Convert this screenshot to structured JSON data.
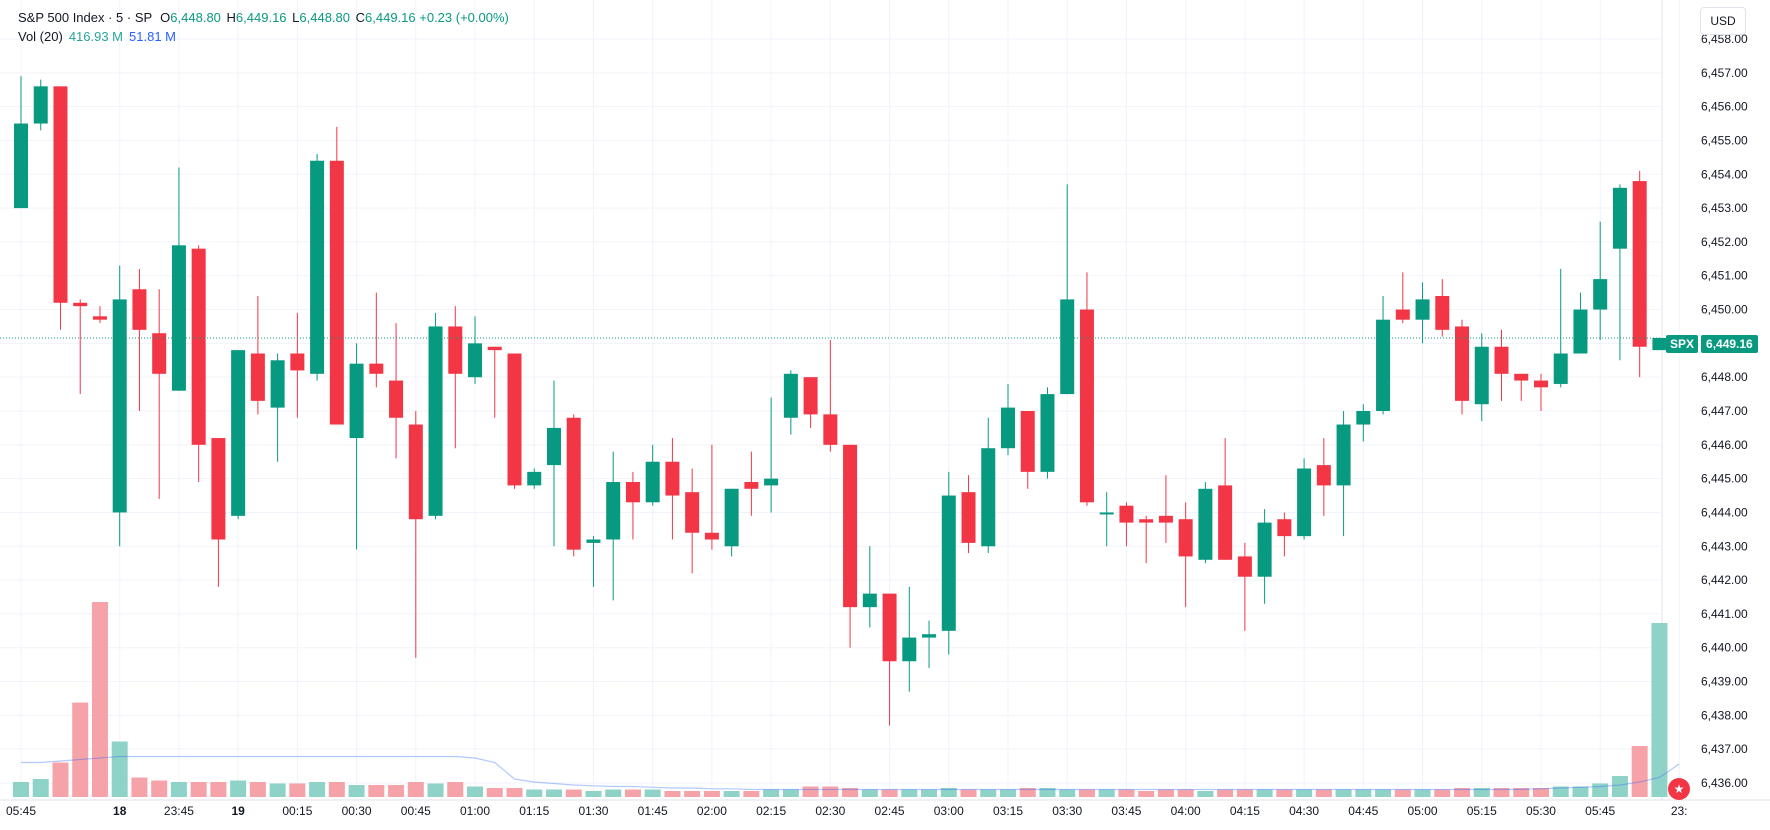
{
  "header": {
    "symbol_line": "S&P 500 Index · 5 · SP",
    "o_key": "O",
    "o_val": "6,448.80",
    "h_key": "H",
    "h_val": "6,449.16",
    "l_key": "L",
    "l_val": "6,448.80",
    "c_key": "C",
    "c_val": "6,449.16",
    "change": "+0.23 (+0.00%)",
    "vol_label": "Vol (20)",
    "vol_value": "416.93 M",
    "vol_ma": "51.81 M"
  },
  "currency": "USD",
  "price_tag": {
    "symbol": "SPX",
    "value": "6,449.16"
  },
  "colors": {
    "up": "#089981",
    "down": "#f23645",
    "vol_up": "#8fd3c8",
    "vol_down": "#f5a3a8",
    "ma": "#2962ff"
  },
  "chart_data": {
    "type": "candlestick",
    "ylim": [
      6436,
      6458
    ],
    "y_ticks": [
      "6,436.00",
      "6,437.00",
      "6,438.00",
      "6,439.00",
      "6,440.00",
      "6,441.00",
      "6,442.00",
      "6,443.00",
      "6,444.00",
      "6,445.00",
      "6,446.00",
      "6,447.00",
      "6,448.00",
      "6,449.00",
      "6,450.00",
      "6,451.00",
      "6,452.00",
      "6,453.00",
      "6,454.00",
      "6,455.00",
      "6,456.00",
      "6,457.00",
      "6,458.00"
    ],
    "x_ticks": [
      {
        "label": "05:45",
        "bar": 0.5
      },
      {
        "label": "18",
        "bar": 5.5,
        "bold": true
      },
      {
        "label": "23:45",
        "bar": 8.5
      },
      {
        "label": "19",
        "bar": 11.5,
        "bold": true
      },
      {
        "label": "00:15",
        "bar": 14.5
      },
      {
        "label": "00:30",
        "bar": 17.5
      },
      {
        "label": "00:45",
        "bar": 20.5
      },
      {
        "label": "01:00",
        "bar": 23.5
      },
      {
        "label": "01:15",
        "bar": 26.5
      },
      {
        "label": "01:30",
        "bar": 29.5
      },
      {
        "label": "01:45",
        "bar": 32.5
      },
      {
        "label": "02:00",
        "bar": 35.5
      },
      {
        "label": "02:15",
        "bar": 38.5
      },
      {
        "label": "02:30",
        "bar": 41.5
      },
      {
        "label": "02:45",
        "bar": 44.5
      },
      {
        "label": "03:00",
        "bar": 47.5
      },
      {
        "label": "03:15",
        "bar": 50.5
      },
      {
        "label": "03:30",
        "bar": 53.5
      },
      {
        "label": "03:45",
        "bar": 56.5
      },
      {
        "label": "04:00",
        "bar": 59.5
      },
      {
        "label": "04:15",
        "bar": 62.5
      },
      {
        "label": "04:30",
        "bar": 65.5
      },
      {
        "label": "04:45",
        "bar": 68.5
      },
      {
        "label": "05:00",
        "bar": 71.5
      },
      {
        "label": "05:15",
        "bar": 74.5
      },
      {
        "label": "05:30",
        "bar": 77.5
      },
      {
        "label": "05:45",
        "bar": 80.5
      },
      {
        "label": "23:",
        "bar": 84.5
      }
    ],
    "current_price": 6449.16,
    "candles": [
      {
        "o": 6453.0,
        "h": 6456.9,
        "l": 6453.0,
        "c": 6455.5,
        "v": 1.0
      },
      {
        "o": 6455.5,
        "h": 6456.8,
        "l": 6455.3,
        "c": 6456.6,
        "v": 1.2
      },
      {
        "o": 6456.6,
        "h": 6456.6,
        "l": 6449.4,
        "c": 6450.2,
        "v": 2.3
      },
      {
        "o": 6450.2,
        "h": 6450.3,
        "l": 6447.5,
        "c": 6450.1,
        "v": 6.3
      },
      {
        "o": 6449.8,
        "h": 6450.1,
        "l": 6449.6,
        "c": 6449.7,
        "v": 13.0
      },
      {
        "o": 6444.0,
        "h": 6451.3,
        "l": 6443.0,
        "c": 6450.3,
        "v": 3.7
      },
      {
        "o": 6450.6,
        "h": 6451.2,
        "l": 6447.0,
        "c": 6449.4,
        "v": 1.3
      },
      {
        "o": 6449.3,
        "h": 6450.6,
        "l": 6444.4,
        "c": 6448.1,
        "v": 1.1
      },
      {
        "o": 6447.6,
        "h": 6454.2,
        "l": 6447.6,
        "c": 6451.9,
        "v": 1.0
      },
      {
        "o": 6451.8,
        "h": 6451.9,
        "l": 6444.9,
        "c": 6446.0,
        "v": 1.0
      },
      {
        "o": 6446.2,
        "h": 6446.2,
        "l": 6441.8,
        "c": 6443.2,
        "v": 1.0
      },
      {
        "o": 6443.9,
        "h": 6448.8,
        "l": 6443.8,
        "c": 6448.8,
        "v": 1.1
      },
      {
        "o": 6448.7,
        "h": 6450.4,
        "l": 6446.9,
        "c": 6447.3,
        "v": 1.0
      },
      {
        "o": 6447.1,
        "h": 6448.7,
        "l": 6445.5,
        "c": 6448.5,
        "v": 0.9
      },
      {
        "o": 6448.7,
        "h": 6449.9,
        "l": 6446.8,
        "c": 6448.2,
        "v": 0.9
      },
      {
        "o": 6448.1,
        "h": 6454.6,
        "l": 6447.9,
        "c": 6454.4,
        "v": 1.0
      },
      {
        "o": 6454.4,
        "h": 6455.4,
        "l": 6446.6,
        "c": 6446.6,
        "v": 1.0
      },
      {
        "o": 6446.2,
        "h": 6449.0,
        "l": 6442.9,
        "c": 6448.4,
        "v": 0.8
      },
      {
        "o": 6448.4,
        "h": 6450.5,
        "l": 6447.7,
        "c": 6448.1,
        "v": 0.8
      },
      {
        "o": 6447.9,
        "h": 6449.6,
        "l": 6445.6,
        "c": 6446.8,
        "v": 0.8
      },
      {
        "o": 6446.6,
        "h": 6447.0,
        "l": 6439.7,
        "c": 6443.8,
        "v": 1.0
      },
      {
        "o": 6443.9,
        "h": 6449.9,
        "l": 6443.8,
        "c": 6449.5,
        "v": 0.9
      },
      {
        "o": 6449.5,
        "h": 6450.1,
        "l": 6445.9,
        "c": 6448.1,
        "v": 1.0
      },
      {
        "o": 6448.0,
        "h": 6449.8,
        "l": 6447.8,
        "c": 6449.0,
        "v": 0.7
      },
      {
        "o": 6448.9,
        "h": 6448.9,
        "l": 6446.8,
        "c": 6448.8,
        "v": 0.6
      },
      {
        "o": 6448.7,
        "h": 6448.7,
        "l": 6444.7,
        "c": 6444.8,
        "v": 0.6
      },
      {
        "o": 6444.8,
        "h": 6445.3,
        "l": 6444.7,
        "c": 6445.2,
        "v": 0.5
      },
      {
        "o": 6445.4,
        "h": 6447.9,
        "l": 6443.0,
        "c": 6446.5,
        "v": 0.5
      },
      {
        "o": 6446.8,
        "h": 6446.9,
        "l": 6442.7,
        "c": 6442.9,
        "v": 0.5
      },
      {
        "o": 6443.1,
        "h": 6443.3,
        "l": 6441.8,
        "c": 6443.2,
        "v": 0.4
      },
      {
        "o": 6443.2,
        "h": 6445.8,
        "l": 6441.4,
        "c": 6444.9,
        "v": 0.5
      },
      {
        "o": 6444.9,
        "h": 6445.2,
        "l": 6443.2,
        "c": 6444.3,
        "v": 0.5
      },
      {
        "o": 6444.3,
        "h": 6446.0,
        "l": 6444.2,
        "c": 6445.5,
        "v": 0.5
      },
      {
        "o": 6445.5,
        "h": 6446.2,
        "l": 6443.2,
        "c": 6444.5,
        "v": 0.4
      },
      {
        "o": 6444.6,
        "h": 6445.3,
        "l": 6442.2,
        "c": 6443.4,
        "v": 0.4
      },
      {
        "o": 6443.4,
        "h": 6446.0,
        "l": 6442.9,
        "c": 6443.2,
        "v": 0.4
      },
      {
        "o": 6443.0,
        "h": 6444.7,
        "l": 6442.7,
        "c": 6444.7,
        "v": 0.4
      },
      {
        "o": 6444.9,
        "h": 6445.8,
        "l": 6443.9,
        "c": 6444.7,
        "v": 0.4
      },
      {
        "o": 6444.8,
        "h": 6447.4,
        "l": 6444.0,
        "c": 6445.0,
        "v": 0.5
      },
      {
        "o": 6446.8,
        "h": 6448.2,
        "l": 6446.3,
        "c": 6448.1,
        "v": 0.5
      },
      {
        "o": 6448.0,
        "h": 6448.0,
        "l": 6446.5,
        "c": 6446.9,
        "v": 0.7
      },
      {
        "o": 6446.9,
        "h": 6449.1,
        "l": 6445.8,
        "c": 6446.0,
        "v": 0.7
      },
      {
        "o": 6446.0,
        "h": 6446.0,
        "l": 6440.0,
        "c": 6441.2,
        "v": 0.6
      },
      {
        "o": 6441.2,
        "h": 6443.0,
        "l": 6440.6,
        "c": 6441.6,
        "v": 0.5
      },
      {
        "o": 6441.6,
        "h": 6441.6,
        "l": 6437.7,
        "c": 6439.6,
        "v": 0.5
      },
      {
        "o": 6439.6,
        "h": 6441.8,
        "l": 6438.7,
        "c": 6440.3,
        "v": 0.5
      },
      {
        "o": 6440.3,
        "h": 6440.8,
        "l": 6439.4,
        "c": 6440.4,
        "v": 0.5
      },
      {
        "o": 6440.5,
        "h": 6445.2,
        "l": 6439.8,
        "c": 6444.5,
        "v": 0.6
      },
      {
        "o": 6444.6,
        "h": 6445.1,
        "l": 6442.8,
        "c": 6443.1,
        "v": 0.5
      },
      {
        "o": 6443.0,
        "h": 6446.8,
        "l": 6442.8,
        "c": 6445.9,
        "v": 0.5
      },
      {
        "o": 6445.9,
        "h": 6447.8,
        "l": 6445.7,
        "c": 6447.1,
        "v": 0.5
      },
      {
        "o": 6447.0,
        "h": 6447.0,
        "l": 6444.7,
        "c": 6445.2,
        "v": 0.6
      },
      {
        "o": 6445.2,
        "h": 6447.7,
        "l": 6445.0,
        "c": 6447.5,
        "v": 0.6
      },
      {
        "o": 6447.5,
        "h": 6453.7,
        "l": 6447.5,
        "c": 6450.3,
        "v": 0.5
      },
      {
        "o": 6450.0,
        "h": 6451.1,
        "l": 6444.2,
        "c": 6444.3,
        "v": 0.5
      },
      {
        "o": 6444.0,
        "h": 6444.6,
        "l": 6443.0,
        "c": 6444.0,
        "v": 0.5
      },
      {
        "o": 6444.2,
        "h": 6444.3,
        "l": 6443.0,
        "c": 6443.7,
        "v": 0.5
      },
      {
        "o": 6443.8,
        "h": 6443.9,
        "l": 6442.5,
        "c": 6443.7,
        "v": 0.4
      },
      {
        "o": 6443.9,
        "h": 6445.1,
        "l": 6443.1,
        "c": 6443.7,
        "v": 0.5
      },
      {
        "o": 6443.8,
        "h": 6444.3,
        "l": 6441.2,
        "c": 6442.7,
        "v": 0.5
      },
      {
        "o": 6442.6,
        "h": 6444.9,
        "l": 6442.5,
        "c": 6444.7,
        "v": 0.4
      },
      {
        "o": 6444.8,
        "h": 6446.2,
        "l": 6442.6,
        "c": 6442.6,
        "v": 0.5
      },
      {
        "o": 6442.7,
        "h": 6443.1,
        "l": 6440.5,
        "c": 6442.1,
        "v": 0.5
      },
      {
        "o": 6442.1,
        "h": 6444.1,
        "l": 6441.3,
        "c": 6443.7,
        "v": 0.5
      },
      {
        "o": 6443.8,
        "h": 6444.0,
        "l": 6442.7,
        "c": 6443.3,
        "v": 0.5
      },
      {
        "o": 6443.3,
        "h": 6445.6,
        "l": 6443.2,
        "c": 6445.3,
        "v": 0.5
      },
      {
        "o": 6445.4,
        "h": 6446.2,
        "l": 6443.9,
        "c": 6444.8,
        "v": 0.5
      },
      {
        "o": 6444.8,
        "h": 6447.0,
        "l": 6443.3,
        "c": 6446.6,
        "v": 0.5
      },
      {
        "o": 6446.6,
        "h": 6447.2,
        "l": 6446.1,
        "c": 6447.0,
        "v": 0.5
      },
      {
        "o": 6447.0,
        "h": 6450.4,
        "l": 6446.9,
        "c": 6449.7,
        "v": 0.5
      },
      {
        "o": 6450.0,
        "h": 6451.1,
        "l": 6449.6,
        "c": 6449.7,
        "v": 0.5
      },
      {
        "o": 6449.7,
        "h": 6450.8,
        "l": 6449.0,
        "c": 6450.3,
        "v": 0.5
      },
      {
        "o": 6450.4,
        "h": 6450.9,
        "l": 6449.2,
        "c": 6449.4,
        "v": 0.5
      },
      {
        "o": 6449.5,
        "h": 6449.7,
        "l": 6446.9,
        "c": 6447.3,
        "v": 0.6
      },
      {
        "o": 6447.2,
        "h": 6449.3,
        "l": 6446.7,
        "c": 6448.9,
        "v": 0.6
      },
      {
        "o": 6448.9,
        "h": 6449.4,
        "l": 6447.3,
        "c": 6448.1,
        "v": 0.6
      },
      {
        "o": 6448.1,
        "h": 6448.1,
        "l": 6447.3,
        "c": 6447.9,
        "v": 0.6
      },
      {
        "o": 6447.9,
        "h": 6448.1,
        "l": 6447.0,
        "c": 6447.7,
        "v": 0.6
      },
      {
        "o": 6447.8,
        "h": 6451.2,
        "l": 6447.7,
        "c": 6448.7,
        "v": 0.7
      },
      {
        "o": 6448.7,
        "h": 6450.5,
        "l": 6448.7,
        "c": 6450.0,
        "v": 0.7
      },
      {
        "o": 6450.0,
        "h": 6452.6,
        "l": 6449.1,
        "c": 6450.9,
        "v": 0.9
      },
      {
        "o": 6451.8,
        "h": 6453.7,
        "l": 6448.5,
        "c": 6453.6,
        "v": 1.4
      },
      {
        "o": 6453.8,
        "h": 6454.1,
        "l": 6448.0,
        "c": 6448.9,
        "v": 3.4
      },
      {
        "o": 6448.8,
        "h": 6449.16,
        "l": 6448.8,
        "c": 6449.16,
        "v": 11.6
      }
    ],
    "volume_ma": [
      2.3,
      2.3,
      2.4,
      2.5,
      2.6,
      2.7,
      2.7,
      2.7,
      2.7,
      2.7,
      2.7,
      2.7,
      2.7,
      2.7,
      2.7,
      2.7,
      2.7,
      2.7,
      2.7,
      2.7,
      2.7,
      2.7,
      2.7,
      2.6,
      2.3,
      1.2,
      1.0,
      0.9,
      0.8,
      0.75,
      0.7,
      0.7,
      0.65,
      0.6,
      0.6,
      0.55,
      0.55,
      0.5,
      0.5,
      0.5,
      0.5,
      0.5,
      0.5,
      0.5,
      0.5,
      0.5,
      0.5,
      0.5,
      0.5,
      0.5,
      0.5,
      0.5,
      0.5,
      0.5,
      0.5,
      0.5,
      0.5,
      0.5,
      0.5,
      0.5,
      0.5,
      0.5,
      0.5,
      0.5,
      0.5,
      0.5,
      0.5,
      0.5,
      0.5,
      0.5,
      0.5,
      0.5,
      0.5,
      0.5,
      0.5,
      0.5,
      0.5,
      0.55,
      0.6,
      0.65,
      0.7,
      0.8,
      1.0,
      1.3,
      2.2
    ]
  }
}
